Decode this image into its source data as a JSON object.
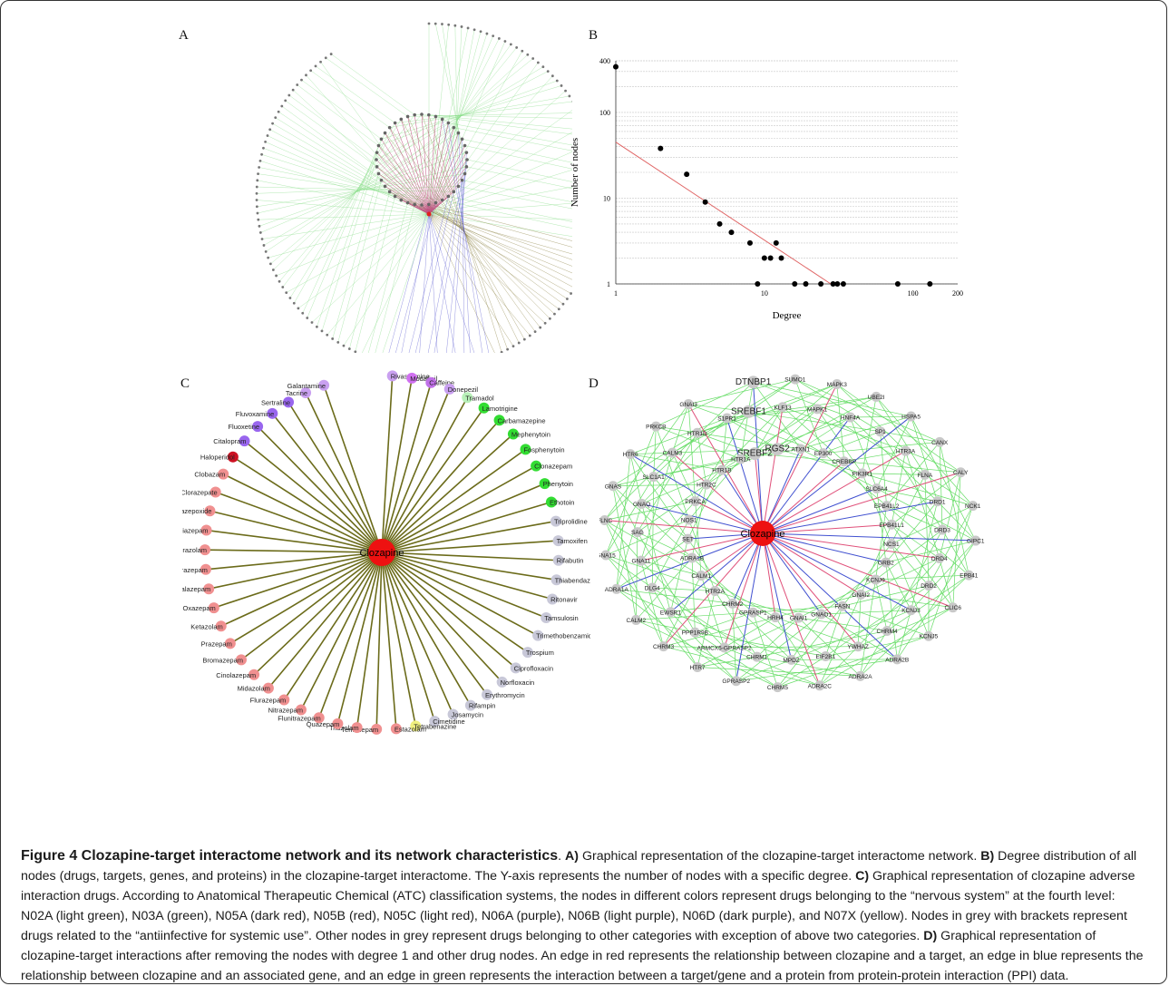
{
  "panels": {
    "a_label": "A",
    "b_label": "B",
    "c_label": "C",
    "d_label": "D"
  },
  "chart_data": {
    "type": "scatter",
    "title": "",
    "xlabel": "Degree",
    "ylabel": "Number of nodes",
    "x_scale": "log",
    "y_scale": "log",
    "xlim": [
      1,
      200
    ],
    "ylim": [
      1,
      400
    ],
    "x_ticks": [
      "1",
      "10",
      "100",
      "200"
    ],
    "y_ticks": [
      "1",
      "10",
      "100",
      "400"
    ],
    "grid": "horizontal",
    "points": [
      {
        "x": 1,
        "y": 340
      },
      {
        "x": 2,
        "y": 38
      },
      {
        "x": 3,
        "y": 19
      },
      {
        "x": 4,
        "y": 9
      },
      {
        "x": 5,
        "y": 5
      },
      {
        "x": 6,
        "y": 4
      },
      {
        "x": 8,
        "y": 3
      },
      {
        "x": 10,
        "y": 2
      },
      {
        "x": 11,
        "y": 2
      },
      {
        "x": 12,
        "y": 3
      },
      {
        "x": 13,
        "y": 2
      },
      {
        "x": 9,
        "y": 1
      },
      {
        "x": 16,
        "y": 1
      },
      {
        "x": 19,
        "y": 1
      },
      {
        "x": 24,
        "y": 1
      },
      {
        "x": 29,
        "y": 1
      },
      {
        "x": 31,
        "y": 1
      },
      {
        "x": 34,
        "y": 1
      },
      {
        "x": 79,
        "y": 1
      },
      {
        "x": 130,
        "y": 1
      }
    ],
    "fit_line": [
      {
        "x": 1,
        "y": 45
      },
      {
        "x": 28,
        "y": 1
      }
    ],
    "colors": {
      "points": "#000000",
      "fit": "#e06666",
      "grid": "#c8c8c8"
    }
  },
  "network_c": {
    "center": "Clozapine",
    "edge_color": "#6b6b1a",
    "center_color": "#ee1111",
    "drugs": [
      {
        "name": "Rivastigmine",
        "color": "#c9a0f0"
      },
      {
        "name": "Modafinil",
        "color": "#d070f0"
      },
      {
        "name": "Caffeine",
        "color": "#c070e8"
      },
      {
        "name": "Donepezil",
        "color": "#c9a0f0"
      },
      {
        "name": "Tramadol",
        "color": "#b8f0b8"
      },
      {
        "name": "Lamotrigine",
        "color": "#33dd33"
      },
      {
        "name": "Carbamazepine",
        "color": "#33dd33"
      },
      {
        "name": "Mephenytoin",
        "color": "#33dd33"
      },
      {
        "name": "Fosphenytoin",
        "color": "#33dd33"
      },
      {
        "name": "Clonazepam",
        "color": "#33dd33"
      },
      {
        "name": "Phenytoin",
        "color": "#33dd33"
      },
      {
        "name": "Ethotoin",
        "color": "#33dd33"
      },
      {
        "name": "Triprolidine",
        "color": "#c8c8d8"
      },
      {
        "name": "Tamoxifen",
        "color": "#c8c8d8"
      },
      {
        "name": "Rifabutin",
        "color": "#c8c8d8"
      },
      {
        "name": "Thiabendazole",
        "color": "#c8c8d8"
      },
      {
        "name": "Ritonavir",
        "color": "#c8c8d8"
      },
      {
        "name": "Tamsulosin",
        "color": "#c8c8d8"
      },
      {
        "name": "Trimethobenzamide",
        "color": "#c8c8d8"
      },
      {
        "name": "Trospium",
        "color": "#c8c8d8"
      },
      {
        "name": "Ciprofloxacin",
        "color": "#c8c8d8"
      },
      {
        "name": "Norfloxacin",
        "color": "#c8c8d8"
      },
      {
        "name": "Erythromycin",
        "color": "#c8c8d8"
      },
      {
        "name": "Rifampin",
        "color": "#c8c8d8"
      },
      {
        "name": "Josamycin",
        "color": "#c8c8d8"
      },
      {
        "name": "Cimetidine",
        "color": "#c8c8d8"
      },
      {
        "name": "Tetrabenazine",
        "color": "#f0f080"
      },
      {
        "name": "Estazolam",
        "color": "#f09090"
      },
      {
        "name": "Temazepam",
        "color": "#f09090"
      },
      {
        "name": "Triazolam",
        "color": "#f09090"
      },
      {
        "name": "Quazepam",
        "color": "#f09090"
      },
      {
        "name": "Flunitrazepam",
        "color": "#f09090"
      },
      {
        "name": "Nitrazepam",
        "color": "#f09090"
      },
      {
        "name": "Flurazepam",
        "color": "#f09090"
      },
      {
        "name": "Midazolam",
        "color": "#f09090"
      },
      {
        "name": "Cinolazepam",
        "color": "#f09090"
      },
      {
        "name": "Bromazepam",
        "color": "#f09090"
      },
      {
        "name": "Prazepam",
        "color": "#f09090"
      },
      {
        "name": "Ketazolam",
        "color": "#f09090"
      },
      {
        "name": "Oxazepam",
        "color": "#f09090"
      },
      {
        "name": "Halazepam",
        "color": "#f09090"
      },
      {
        "name": "Lorazepam",
        "color": "#f09090"
      },
      {
        "name": "Alprazolam",
        "color": "#f09090"
      },
      {
        "name": "Diazepam",
        "color": "#f09090"
      },
      {
        "name": "Chlordiazepoxide",
        "color": "#f09090"
      },
      {
        "name": "Clorazepate",
        "color": "#f09090"
      },
      {
        "name": "Clobazam",
        "color": "#f09090"
      },
      {
        "name": "Haloperidol",
        "color": "#cc1122"
      },
      {
        "name": "Citalopram",
        "color": "#9966ee"
      },
      {
        "name": "Fluoxetine",
        "color": "#9966ee"
      },
      {
        "name": "Fluvoxamine",
        "color": "#9966ee"
      },
      {
        "name": "Sertraline",
        "color": "#9966ee"
      },
      {
        "name": "Tacrine",
        "color": "#c9a0f0"
      },
      {
        "name": "Galantamine",
        "color": "#c9a0f0"
      }
    ]
  },
  "network_d": {
    "center": "Clozapine",
    "colors": {
      "target": "#e0507a",
      "gene": "#4050d0",
      "ppi": "#66dd66",
      "node": "#c8c8c8",
      "center": "#ee1111"
    },
    "labels": [
      "SREBF2",
      "SREBF1",
      "DTNBP1",
      "RGS2",
      "KLF13",
      "SUMO1",
      "ATXN1",
      "MAPK1",
      "MAPK3",
      "EP300",
      "HNF4A",
      "UBE2I",
      "CREBBP",
      "SP1",
      "HSPA5",
      "PIK3R1",
      "HTR3A",
      "CANX",
      "SLC6A4",
      "FLNA",
      "CALY",
      "EPB41L2",
      "DRD1",
      "NCK1",
      "EPB41L1",
      "DRD3",
      "GIPC1",
      "NCS1",
      "DRD4",
      "EPB41",
      "GRB2",
      "DRD2",
      "CLIC6",
      "KCNJ9",
      "KCNJ3",
      "KCNJ5",
      "GNAI2",
      "CHRM4",
      "ADRA2B",
      "FASN",
      "YWHAZ",
      "ADRA2A",
      "GNAO1",
      "EIF2B1",
      "ADRA2C",
      "GNAI1",
      "MPDZ",
      "CHRM5",
      "HRH4",
      "CHRM1",
      "GPRASP2",
      "GPRASP1",
      "ARMCX5-GPRASP2",
      "HTR7",
      "CHRM2",
      "PPP1R9B",
      "CHRM3",
      "HTR2A",
      "EWSR1",
      "CALM2",
      "CALM1",
      "DLG4",
      "ADRA1A",
      "ADRA1B",
      "GNA11",
      "GNA15",
      "SET",
      "SAG",
      "FLNC",
      "NOS1",
      "GNAQ",
      "GNAS",
      "PRKCA",
      "SLC1A1",
      "HTR6",
      "HTR2C",
      "CALM3",
      "PRKCB",
      "HTR1B",
      "HTR1D",
      "GNAI3",
      "HTR1A",
      "S1PR1"
    ]
  },
  "caption": {
    "title": "Figure 4 Clozapine-target interactome network and its network characteristics",
    "period": ". ",
    "a_tag": "A)",
    "a_text": " Graphical representation of the clozapine-target interactome network. ",
    "b_tag": "B)",
    "b_text": " Degree distribution of all nodes (drugs, targets, genes, and proteins) in the clozapine-target interactome. The Y-axis represents the number of nodes with a specific degree. ",
    "c_tag": "C)",
    "c_text": " Graphical representation of clozapine adverse interaction drugs. According to Anatomical Therapeutic Chemical (ATC) classification systems, the nodes in different colors represent drugs belonging to the “nervous system” at the fourth level: N02A (light green), N03A (green), N05A (dark red), N05B (red), N05C (light red), N06A (purple), N06B (light purple), N06D (dark purple), and N07X (yellow). Nodes in grey with brackets represent drugs related to the “antiinfective for systemic use”. Other nodes in grey represent drugs belonging to other categories with exception of above two categories. ",
    "d_tag": "D)",
    "d_text": " Graphical representation of clozapine-target interactions after removing the nodes with degree 1 and other drug nodes. An edge in red represents the relationship between clozapine and a target, an edge in blue represents the relationship between clozapine and an associated gene, and an edge in green represents the interaction between a target/gene and a protein from protein-protein interaction (PPI) data."
  }
}
